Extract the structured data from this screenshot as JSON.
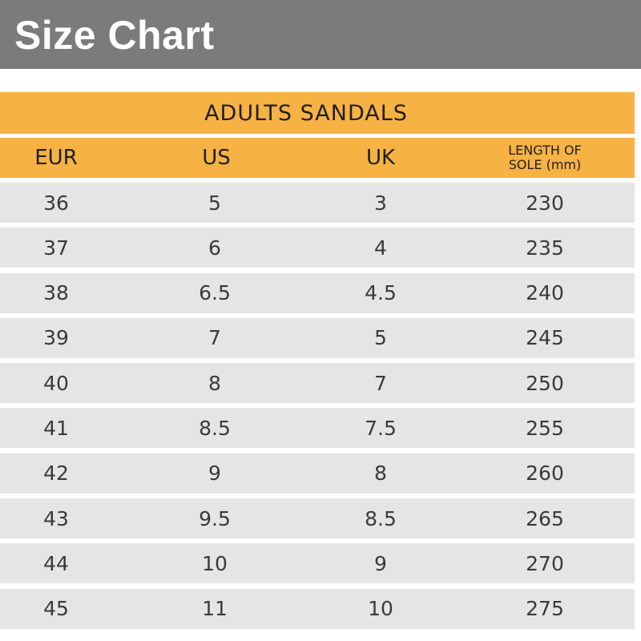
{
  "header": {
    "title": "Size Chart"
  },
  "table": {
    "title": "ADULTS SANDALS",
    "columns": {
      "eur": "EUR",
      "us": "US",
      "uk": "UK",
      "length_line1": "LENGTH OF",
      "length_line2": "SOLE  (mm)"
    },
    "rows": [
      {
        "eur": "36",
        "us": "5",
        "uk": "3",
        "length": "230"
      },
      {
        "eur": "37",
        "us": "6",
        "uk": "4",
        "length": "235"
      },
      {
        "eur": "38",
        "us": "6.5",
        "uk": "4.5",
        "length": "240"
      },
      {
        "eur": "39",
        "us": "7",
        "uk": "5",
        "length": "245"
      },
      {
        "eur": "40",
        "us": "8",
        "uk": "7",
        "length": "250"
      },
      {
        "eur": "41",
        "us": "8.5",
        "uk": "7.5",
        "length": "255"
      },
      {
        "eur": "42",
        "us": "9",
        "uk": "8",
        "length": "260"
      },
      {
        "eur": "43",
        "us": "9.5",
        "uk": "8.5",
        "length": "265"
      },
      {
        "eur": "44",
        "us": "10",
        "uk": "9",
        "length": "270"
      },
      {
        "eur": "45",
        "us": "11",
        "uk": "10",
        "length": "275"
      }
    ]
  },
  "colors": {
    "title_bar": "#7b7b7b",
    "accent_orange": "#f7b244",
    "row_background": "#e5e5e5"
  }
}
